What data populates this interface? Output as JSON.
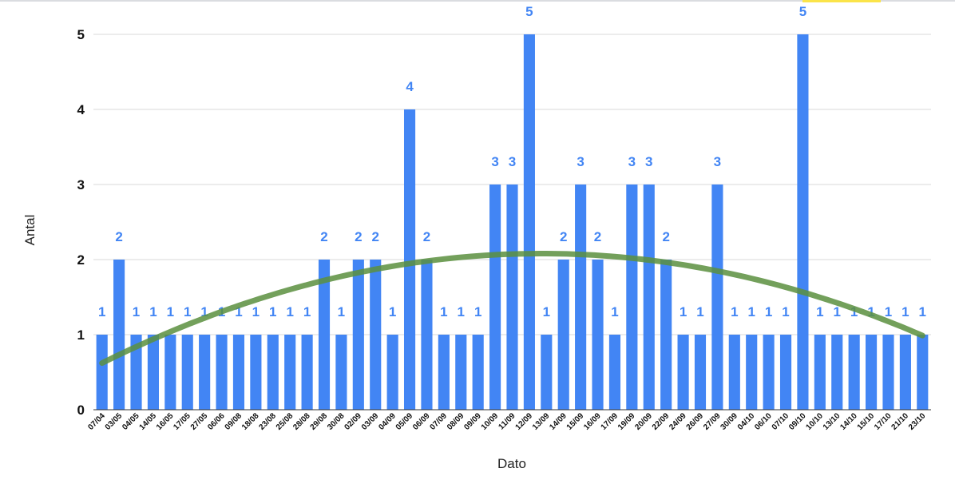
{
  "chart_data": {
    "type": "bar",
    "title": "",
    "xlabel": "Dato",
    "ylabel": "Antal",
    "ylim": [
      0,
      5
    ],
    "yticks": [
      0,
      1,
      2,
      3,
      4,
      5
    ],
    "grid": true,
    "legend": "none",
    "bar_color": "#4285f4",
    "trendline_color": "#5a8f3e",
    "trendline": "polynomial",
    "categories": [
      "07/04",
      "03/05",
      "04/05",
      "14/05",
      "16/05",
      "17/05",
      "27/05",
      "06/06",
      "09/08",
      "18/08",
      "23/08",
      "25/08",
      "28/08",
      "29/08",
      "30/08",
      "02/09",
      "03/09",
      "04/09",
      "05/09",
      "06/09",
      "07/09",
      "08/09",
      "09/09",
      "10/09",
      "11/09",
      "12/09",
      "13/09",
      "14/09",
      "15/09",
      "16/09",
      "17/09",
      "19/09",
      "20/09",
      "22/09",
      "24/09",
      "26/09",
      "27/09",
      "30/09",
      "04/10",
      "06/10",
      "07/10",
      "09/10",
      "10/10",
      "13/10",
      "14/10",
      "15/10",
      "17/10",
      "21/10",
      "23/10"
    ],
    "values": [
      1,
      2,
      1,
      1,
      1,
      1,
      1,
      1,
      1,
      1,
      1,
      1,
      1,
      2,
      1,
      2,
      2,
      1,
      4,
      2,
      1,
      1,
      1,
      3,
      3,
      5,
      1,
      2,
      3,
      2,
      1,
      3,
      3,
      2,
      1,
      1,
      3,
      1,
      1,
      1,
      1,
      5,
      1,
      1,
      1,
      1,
      1,
      1,
      1
    ]
  }
}
